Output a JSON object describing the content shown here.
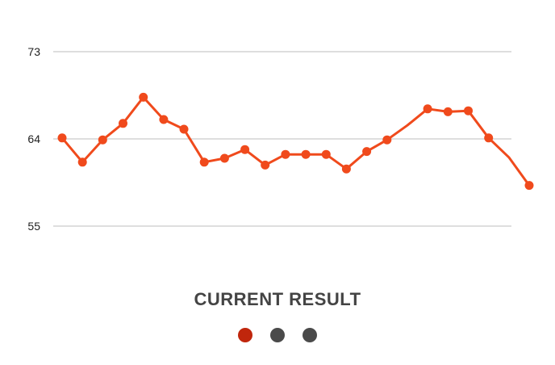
{
  "chart_data": {
    "type": "line",
    "y_ticks": [
      "73",
      "64",
      "55"
    ],
    "ylim": [
      55,
      73
    ],
    "grid": true,
    "series": [
      {
        "color": "#f04a1c",
        "points": [
          {
            "x": 0,
            "y": 64.1,
            "marker": true
          },
          {
            "x": 1,
            "y": 61.6,
            "marker": true
          },
          {
            "x": 2,
            "y": 63.9,
            "marker": true
          },
          {
            "x": 3,
            "y": 65.6,
            "marker": true
          },
          {
            "x": 4,
            "y": 68.3,
            "marker": true
          },
          {
            "x": 5,
            "y": 66.0,
            "marker": true
          },
          {
            "x": 6,
            "y": 65.0,
            "marker": true
          },
          {
            "x": 7,
            "y": 61.6,
            "marker": true
          },
          {
            "x": 8,
            "y": 62.0,
            "marker": true
          },
          {
            "x": 9,
            "y": 62.9,
            "marker": true
          },
          {
            "x": 10,
            "y": 61.3,
            "marker": true
          },
          {
            "x": 11,
            "y": 62.4,
            "marker": true
          },
          {
            "x": 12,
            "y": 62.4,
            "marker": true
          },
          {
            "x": 13,
            "y": 62.4,
            "marker": true
          },
          {
            "x": 14,
            "y": 60.9,
            "marker": true
          },
          {
            "x": 15,
            "y": 62.7,
            "marker": true
          },
          {
            "x": 16,
            "y": 63.9,
            "marker": true
          },
          {
            "x": 17,
            "y": 65.4,
            "marker": false
          },
          {
            "x": 18,
            "y": 67.1,
            "marker": true
          },
          {
            "x": 19,
            "y": 66.8,
            "marker": true
          },
          {
            "x": 20,
            "y": 66.9,
            "marker": true
          },
          {
            "x": 21,
            "y": 64.1,
            "marker": true
          },
          {
            "x": 22,
            "y": 62.1,
            "marker": false
          },
          {
            "x": 23,
            "y": 59.2,
            "marker": true
          }
        ]
      }
    ]
  },
  "title": "CURRENT RESULT",
  "pager": {
    "count": 3,
    "active_index": 0,
    "active_color": "#c0260c",
    "inactive_color": "#4a4a4a"
  }
}
